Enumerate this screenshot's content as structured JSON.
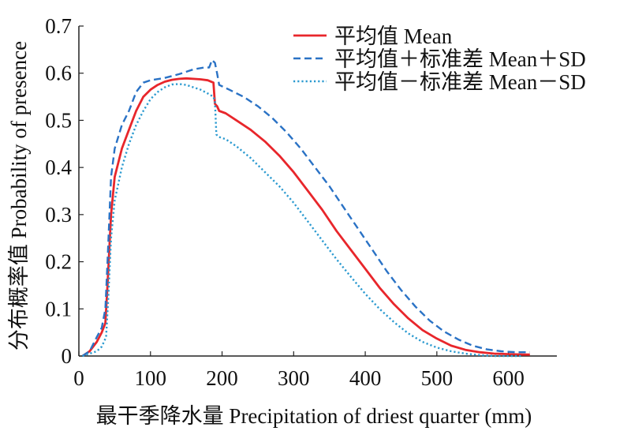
{
  "chart_data": {
    "type": "line",
    "xlabel": "最干季降水量 Precipitation of driest quarter (mm)",
    "ylabel": "分布概率值 Probability of presence",
    "xlim": [
      0,
      650
    ],
    "ylim": [
      0,
      0.7
    ],
    "x_ticks": [
      "0",
      "100",
      "200",
      "300",
      "400",
      "500",
      "600"
    ],
    "y_ticks": [
      "0",
      "0.1",
      "0.2",
      "0.3",
      "0.4",
      "0.5",
      "0.6",
      "0.7"
    ],
    "grid": false,
    "legend_position": "top-right",
    "series": [
      {
        "name": "平均值 Mean",
        "color": "#e8262b",
        "style": "solid",
        "points": [
          [
            5,
            0.0
          ],
          [
            15,
            0.01
          ],
          [
            25,
            0.03
          ],
          [
            32,
            0.05
          ],
          [
            37,
            0.07
          ],
          [
            40,
            0.15
          ],
          [
            45,
            0.3
          ],
          [
            50,
            0.38
          ],
          [
            60,
            0.44
          ],
          [
            70,
            0.48
          ],
          [
            80,
            0.52
          ],
          [
            90,
            0.55
          ],
          [
            100,
            0.565
          ],
          [
            110,
            0.575
          ],
          [
            120,
            0.582
          ],
          [
            130,
            0.586
          ],
          [
            140,
            0.588
          ],
          [
            150,
            0.589
          ],
          [
            160,
            0.588
          ],
          [
            170,
            0.587
          ],
          [
            180,
            0.585
          ],
          [
            188,
            0.58
          ],
          [
            190,
            0.535
          ],
          [
            193,
            0.53
          ],
          [
            196,
            0.52
          ],
          [
            205,
            0.515
          ],
          [
            220,
            0.5
          ],
          [
            240,
            0.48
          ],
          [
            260,
            0.455
          ],
          [
            280,
            0.425
          ],
          [
            300,
            0.39
          ],
          [
            320,
            0.35
          ],
          [
            340,
            0.31
          ],
          [
            360,
            0.265
          ],
          [
            380,
            0.225
          ],
          [
            400,
            0.185
          ],
          [
            420,
            0.145
          ],
          [
            440,
            0.11
          ],
          [
            460,
            0.08
          ],
          [
            480,
            0.055
          ],
          [
            500,
            0.037
          ],
          [
            520,
            0.022
          ],
          [
            540,
            0.013
          ],
          [
            560,
            0.008
          ],
          [
            580,
            0.005
          ],
          [
            600,
            0.004
          ],
          [
            620,
            0.003
          ],
          [
            630,
            0.003
          ]
        ]
      },
      {
        "name": "平均值＋标准差 Mean＋SD",
        "color": "#2a72c5",
        "style": "dashed",
        "points": [
          [
            5,
            0.0
          ],
          [
            15,
            0.01
          ],
          [
            25,
            0.04
          ],
          [
            32,
            0.06
          ],
          [
            37,
            0.1
          ],
          [
            40,
            0.2
          ],
          [
            45,
            0.38
          ],
          [
            50,
            0.44
          ],
          [
            60,
            0.49
          ],
          [
            70,
            0.52
          ],
          [
            80,
            0.56
          ],
          [
            90,
            0.58
          ],
          [
            100,
            0.585
          ],
          [
            120,
            0.59
          ],
          [
            140,
            0.598
          ],
          [
            160,
            0.608
          ],
          [
            175,
            0.612
          ],
          [
            182,
            0.612
          ],
          [
            186,
            0.628
          ],
          [
            190,
            0.622
          ],
          [
            193,
            0.6
          ],
          [
            196,
            0.575
          ],
          [
            210,
            0.565
          ],
          [
            230,
            0.55
          ],
          [
            250,
            0.53
          ],
          [
            270,
            0.505
          ],
          [
            290,
            0.475
          ],
          [
            310,
            0.44
          ],
          [
            330,
            0.4
          ],
          [
            350,
            0.36
          ],
          [
            370,
            0.315
          ],
          [
            390,
            0.27
          ],
          [
            410,
            0.225
          ],
          [
            430,
            0.18
          ],
          [
            450,
            0.14
          ],
          [
            470,
            0.105
          ],
          [
            490,
            0.075
          ],
          [
            510,
            0.052
          ],
          [
            530,
            0.035
          ],
          [
            550,
            0.022
          ],
          [
            570,
            0.014
          ],
          [
            590,
            0.01
          ],
          [
            610,
            0.008
          ],
          [
            630,
            0.008
          ]
        ]
      },
      {
        "name": "平均值－标准差 Mean－SD",
        "color": "#2b9ad0",
        "style": "dotted",
        "points": [
          [
            5,
            0.0
          ],
          [
            15,
            0.005
          ],
          [
            25,
            0.01
          ],
          [
            32,
            0.02
          ],
          [
            38,
            0.04
          ],
          [
            41,
            0.12
          ],
          [
            45,
            0.25
          ],
          [
            50,
            0.33
          ],
          [
            60,
            0.4
          ],
          [
            70,
            0.45
          ],
          [
            80,
            0.49
          ],
          [
            90,
            0.52
          ],
          [
            100,
            0.545
          ],
          [
            110,
            0.56
          ],
          [
            120,
            0.57
          ],
          [
            130,
            0.576
          ],
          [
            140,
            0.577
          ],
          [
            150,
            0.575
          ],
          [
            160,
            0.57
          ],
          [
            170,
            0.565
          ],
          [
            180,
            0.557
          ],
          [
            188,
            0.55
          ],
          [
            190,
            0.54
          ],
          [
            192,
            0.47
          ],
          [
            195,
            0.465
          ],
          [
            205,
            0.46
          ],
          [
            220,
            0.445
          ],
          [
            240,
            0.42
          ],
          [
            260,
            0.39
          ],
          [
            280,
            0.36
          ],
          [
            300,
            0.325
          ],
          [
            320,
            0.285
          ],
          [
            340,
            0.245
          ],
          [
            360,
            0.205
          ],
          [
            380,
            0.168
          ],
          [
            400,
            0.132
          ],
          [
            420,
            0.1
          ],
          [
            440,
            0.072
          ],
          [
            460,
            0.048
          ],
          [
            480,
            0.03
          ],
          [
            500,
            0.018
          ],
          [
            520,
            0.01
          ],
          [
            540,
            0.005
          ],
          [
            560,
            0.002
          ],
          [
            580,
            0.0
          ],
          [
            600,
            0.0
          ],
          [
            620,
            0.0
          ]
        ]
      }
    ]
  }
}
